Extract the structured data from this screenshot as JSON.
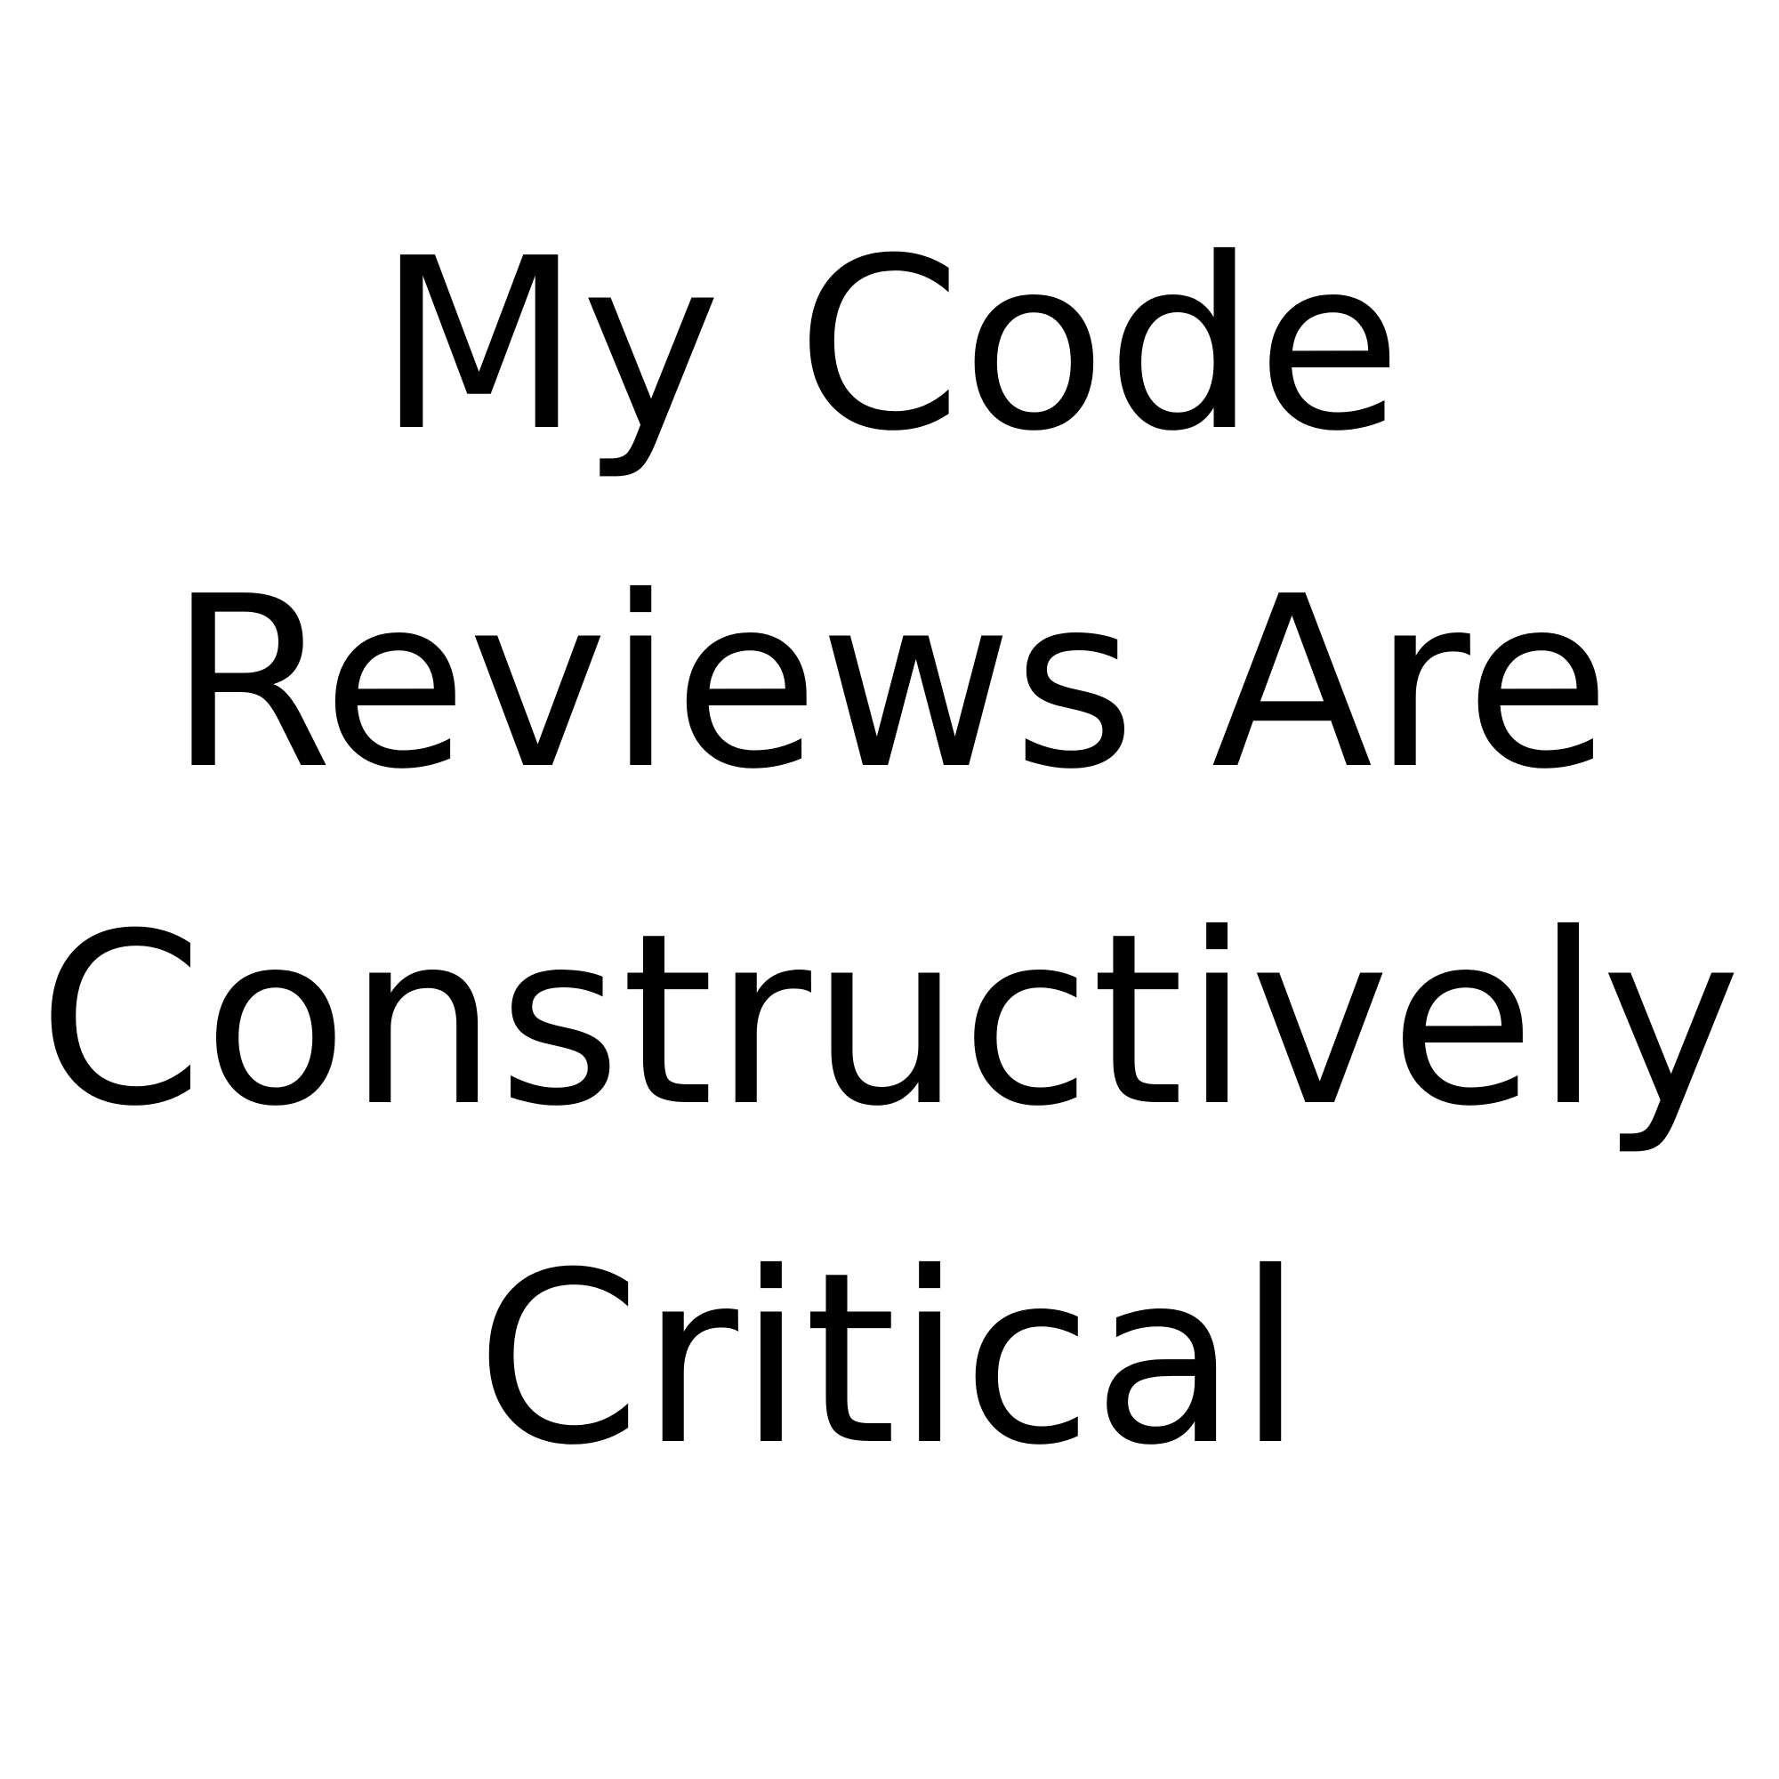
{
  "caption": {
    "lines": [
      "My Code",
      "Reviews Are",
      "Constructively",
      "Critical"
    ]
  },
  "colors": {
    "background": "#ffffff",
    "text": "#000000"
  }
}
